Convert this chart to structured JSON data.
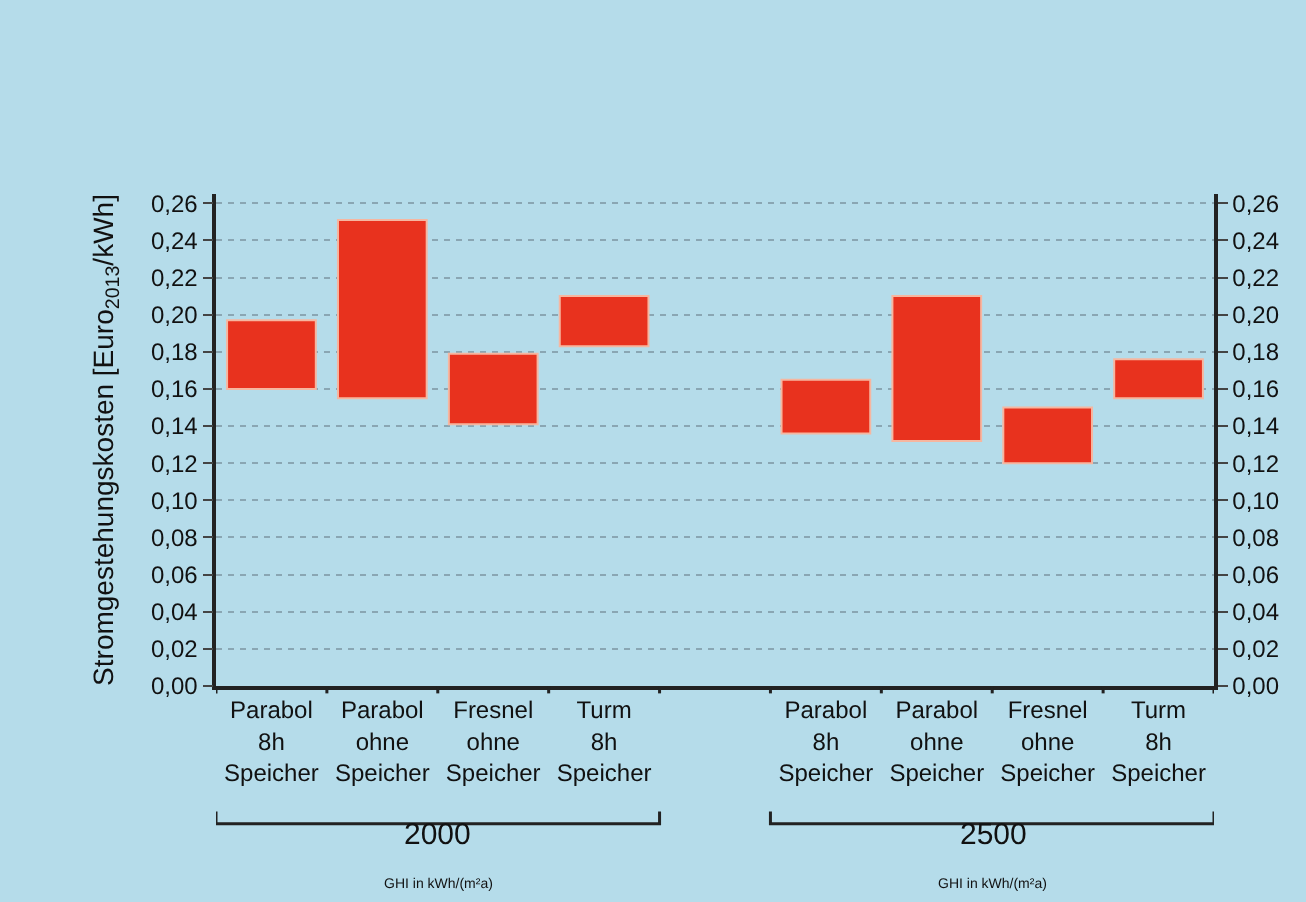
{
  "chart_data": {
    "type": "bar",
    "ylabel": "Stromgestehungskosten [Euro$_{2013}$/kWh]",
    "categories": [
      "Parabol\n8h\nSpeicher",
      "Parabol\nohne\nSpeicher",
      "Fresnel\nohne\nSpeicher",
      "Turm\n8h\nSpeicher",
      null,
      "Parabol\n8h\nSpeicher",
      "Parabol\nohne\nSpeicher",
      "Fresnel\nohne\nSpeicher",
      "Turm\n8h\nSpeicher"
    ],
    "base": [
      0.16,
      0.155,
      0.141,
      0.183,
      null,
      0.136,
      0.132,
      0.12,
      0.155
    ],
    "values": [
      0.037,
      0.096,
      0.038,
      0.027,
      null,
      0.029,
      0.078,
      0.03,
      0.021
    ],
    "color": "#e8321e",
    "ylim": [
      0,
      0.265
    ],
    "yticks": [
      {
        "value": 0,
        "label": "0,00"
      },
      {
        "value": 0.02,
        "label": "0,02"
      },
      {
        "value": 0.04,
        "label": "0,04"
      },
      {
        "value": 0.06,
        "label": "0,06"
      },
      {
        "value": 0.08,
        "label": "0,08"
      },
      {
        "value": 0.1,
        "label": "0,10"
      },
      {
        "value": 0.12,
        "label": "0,12"
      },
      {
        "value": 0.14,
        "label": "0,14"
      },
      {
        "value": 0.16,
        "label": "0,16"
      },
      {
        "value": 0.18,
        "label": "0,18"
      },
      {
        "value": 0.2,
        "label": "0,20"
      },
      {
        "value": 0.22,
        "label": "0,22"
      },
      {
        "value": 0.24,
        "label": "0,24"
      },
      {
        "value": 0.26,
        "label": "0,26"
      }
    ],
    "y2lim": [
      0,
      0.265
    ],
    "y2ticks": [
      {
        "value": 0,
        "label": "0,00"
      },
      {
        "value": 0.02,
        "label": "0,02"
      },
      {
        "value": 0.04,
        "label": "0,04"
      },
      {
        "value": 0.06,
        "label": "0,06"
      },
      {
        "value": 0.08,
        "label": "0,08"
      },
      {
        "value": 0.1,
        "label": "0,10"
      },
      {
        "value": 0.12,
        "label": "0,12"
      },
      {
        "value": 0.14,
        "label": "0,14"
      },
      {
        "value": 0.16,
        "label": "0,16"
      },
      {
        "value": 0.18,
        "label": "0,18"
      },
      {
        "value": 0.2,
        "label": "0,20"
      },
      {
        "value": 0.22,
        "label": "0,22"
      },
      {
        "value": 0.24,
        "label": "0,24"
      },
      {
        "value": 0.26,
        "label": "0,26"
      }
    ],
    "grid": "y",
    "annotations": [
      "2000",
      "GHI in kWh/(m²a)",
      "2500",
      "GHI in kWh/(m²a)"
    ]
  }
}
